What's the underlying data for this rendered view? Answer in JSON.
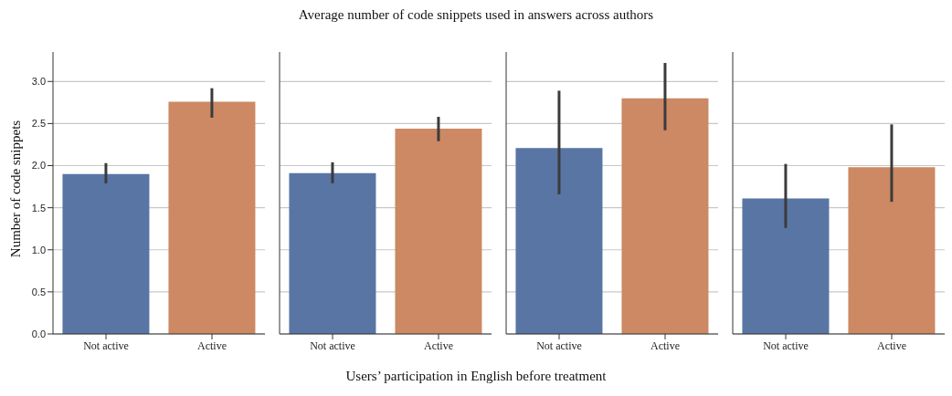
{
  "chart_data": [
    {
      "type": "bar",
      "ylabel": "Number of code snippets",
      "categories": [
        "Not active",
        "Active"
      ],
      "values": [
        1.9,
        2.76
      ],
      "colors": [
        "#5875a4",
        "#cc8963"
      ],
      "errors": [
        [
          1.79,
          2.03
        ],
        [
          2.57,
          2.92
        ]
      ],
      "ylim": [
        0,
        3.35
      ],
      "yticks": [
        {
          "value": 0,
          "label": "0.0"
        },
        {
          "value": 0.5,
          "label": "0.5"
        },
        {
          "value": 1,
          "label": "1.0"
        },
        {
          "value": 1.5,
          "label": "1.5"
        },
        {
          "value": 2,
          "label": "2.0"
        },
        {
          "value": 2.5,
          "label": "2.5"
        },
        {
          "value": 3,
          "label": "3.0"
        }
      ],
      "grid": "y"
    },
    {
      "type": "bar",
      "title": "Average number of code snippets used in answers across authors",
      "xlabel": "Users’ participation in English before treatment",
      "categories": [
        "Not active",
        "Active"
      ],
      "values": [
        1.91,
        2.44
      ],
      "colors": [
        "#5875a4",
        "#cc8963"
      ],
      "errors": [
        [
          1.79,
          2.04
        ],
        [
          2.29,
          2.58
        ]
      ],
      "ylim": [
        0,
        3.35
      ],
      "yticks": [
        0,
        0.5,
        1,
        1.5,
        2,
        2.5,
        3
      ],
      "grid": "y",
      "tick_labels": "x"
    },
    {
      "type": "bar",
      "categories": [
        "Not active",
        "Active"
      ],
      "values": [
        2.21,
        2.8
      ],
      "colors": [
        "#5875a4",
        "#cc8963"
      ],
      "errors": [
        [
          1.66,
          2.89
        ],
        [
          2.42,
          3.22
        ]
      ],
      "ylim": [
        0,
        3.35
      ],
      "yticks": [
        0,
        0.5,
        1,
        1.5,
        2,
        2.5,
        3
      ],
      "grid": "y",
      "tick_labels": "x"
    },
    {
      "type": "bar",
      "categories": [
        "Not active",
        "Active"
      ],
      "values": [
        1.61,
        1.98
      ],
      "colors": [
        "#5875a4",
        "#cc8963"
      ],
      "errors": [
        [
          1.26,
          2.02
        ],
        [
          1.57,
          2.49
        ]
      ],
      "ylim": [
        0,
        3.35
      ],
      "yticks": [
        0,
        0.5,
        1,
        1.5,
        2,
        2.5,
        3
      ],
      "grid": "y",
      "tick_labels": "x"
    }
  ]
}
